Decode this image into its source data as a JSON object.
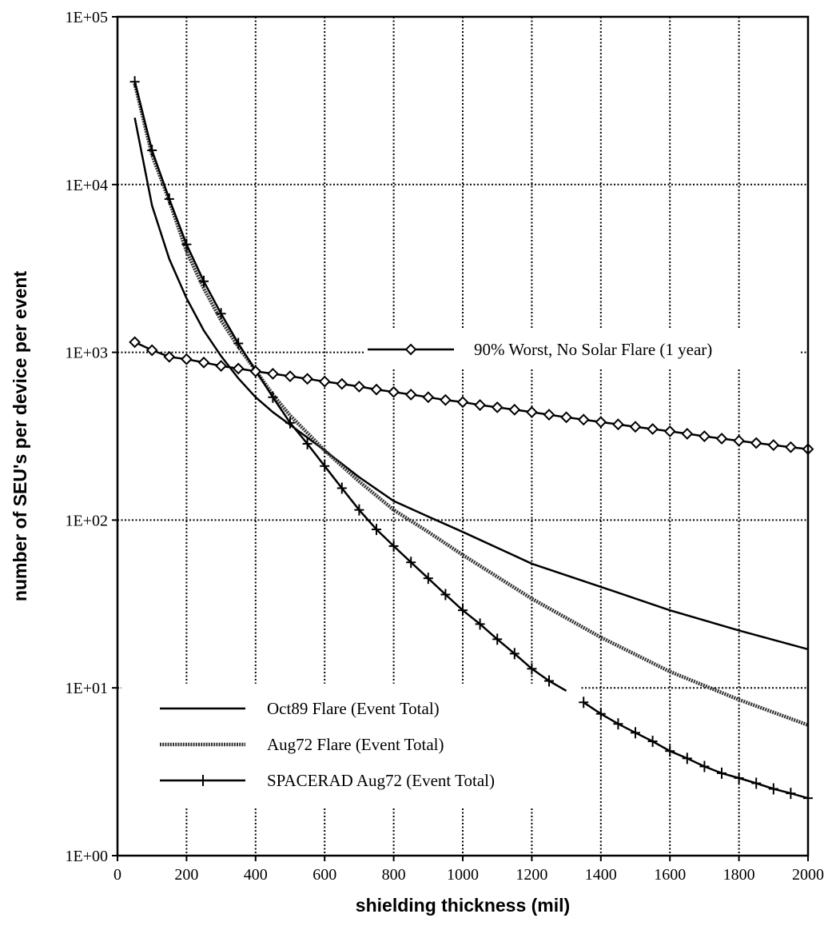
{
  "chart_data": {
    "type": "line",
    "title": "",
    "xlabel": "shielding thickness (mil)",
    "ylabel": "number of SEU's per device per event",
    "xlim": [
      0,
      2000
    ],
    "ylim": [
      1,
      100000
    ],
    "yscale": "log",
    "grid": true,
    "x_ticks": [
      0,
      200,
      400,
      600,
      800,
      1000,
      1200,
      1400,
      1600,
      1800,
      2000
    ],
    "x_tick_labels": [
      "0",
      "200",
      "400",
      "600",
      "800",
      "1000",
      "1200",
      "1400",
      "1600",
      "1800",
      "2000"
    ],
    "y_ticks": [
      1,
      10,
      100,
      1000,
      10000,
      100000
    ],
    "y_tick_labels": [
      "1E+00",
      "1E+01",
      "1E+02",
      "1E+03",
      "1E+04",
      "1E+05"
    ],
    "series": [
      {
        "name": "Oct89 Flare (Event Total)",
        "style": "solid",
        "x": [
          50,
          100,
          150,
          200,
          250,
          300,
          350,
          400,
          450,
          500,
          600,
          700,
          800,
          900,
          1000,
          1200,
          1400,
          1600,
          1800,
          2000
        ],
        "y": [
          25000,
          7500,
          3600,
          2100,
          1350,
          950,
          700,
          540,
          440,
          370,
          260,
          180,
          130,
          105,
          85,
          55,
          40,
          29,
          22,
          17
        ]
      },
      {
        "name": "Aug72 Flare (Event Total)",
        "style": "dotted",
        "x": [
          50,
          100,
          150,
          200,
          250,
          300,
          350,
          400,
          450,
          500,
          600,
          700,
          800,
          900,
          1000,
          1200,
          1400,
          1600,
          1800,
          2000
        ],
        "y": [
          40000,
          15000,
          8000,
          4000,
          2400,
          1550,
          1080,
          780,
          560,
          420,
          260,
          170,
          115,
          85,
          62,
          34,
          20,
          12.5,
          8.5,
          6
        ]
      },
      {
        "name": "SPACERAD Aug72 (Event Total)",
        "style": "plus",
        "x": [
          50,
          100,
          150,
          200,
          250,
          300,
          350,
          400,
          450,
          500,
          550,
          600,
          650,
          700,
          750,
          800,
          850,
          900,
          950,
          1000,
          1050,
          1100,
          1150,
          1200,
          1250,
          1300,
          1350,
          1400,
          1450,
          1500,
          1550,
          1600,
          1650,
          1700,
          1750,
          1800,
          1850,
          1900,
          1950,
          2000
        ],
        "y": [
          41000,
          16000,
          8200,
          4400,
          2650,
          1700,
          1130,
          780,
          540,
          380,
          285,
          210,
          155,
          115,
          88,
          70,
          56,
          45,
          36,
          29,
          24,
          19.5,
          16,
          13,
          11,
          9.6,
          8.2,
          7,
          6.1,
          5.4,
          4.8,
          4.2,
          3.8,
          3.4,
          3.1,
          2.9,
          2.7,
          2.5,
          2.35,
          2.2
        ]
      },
      {
        "name": "90% Worst, No Solar Flare (1 year)",
        "style": "diamond",
        "x": [
          50,
          100,
          150,
          200,
          250,
          300,
          350,
          400,
          450,
          500,
          550,
          600,
          650,
          700,
          750,
          800,
          850,
          900,
          950,
          1000,
          1050,
          1100,
          1150,
          1200,
          1250,
          1300,
          1350,
          1400,
          1450,
          1500,
          1550,
          1600,
          1650,
          1700,
          1750,
          1800,
          1850,
          1900,
          1950,
          2000
        ],
        "y": [
          1150,
          1030,
          940,
          910,
          870,
          830,
          800,
          770,
          745,
          720,
          695,
          670,
          648,
          625,
          600,
          580,
          560,
          540,
          520,
          505,
          485,
          470,
          455,
          440,
          425,
          410,
          397,
          384,
          372,
          360,
          349,
          338,
          327,
          316,
          306,
          297,
          288,
          280,
          272,
          265
        ]
      }
    ],
    "legend_bottom": [
      "Oct89 Flare (Event Total)",
      "Aug72 Flare (Event Total)",
      "SPACERAD Aug72 (Event Total)"
    ],
    "legend_inline": "90% Worst, No Solar Flare (1 year)"
  }
}
